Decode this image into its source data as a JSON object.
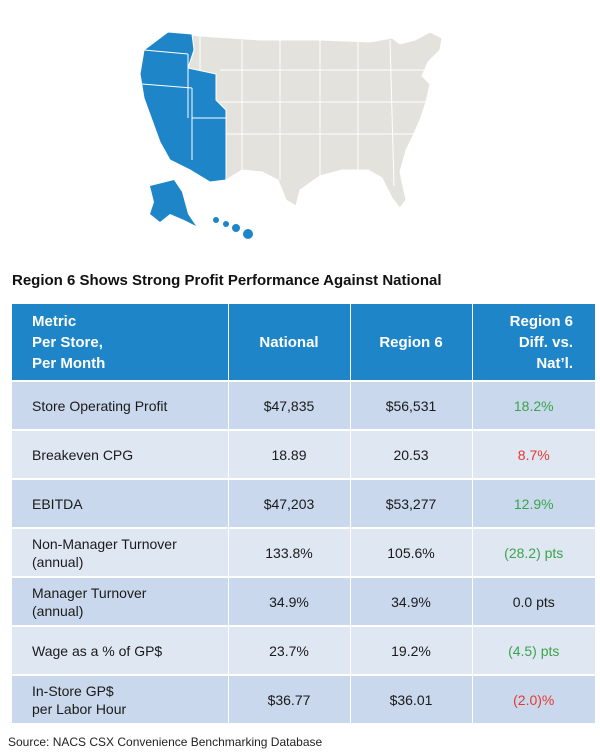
{
  "title": "Region 6 Shows Strong Profit Performance Against National",
  "table": {
    "headers": {
      "metric": [
        "Metric",
        "Per Store,",
        "Per Month"
      ],
      "national": "National",
      "region": "Region 6",
      "diff": [
        "Region 6",
        "Diff. vs.",
        "Nat’l."
      ]
    },
    "rows": [
      {
        "label": [
          "Store Operating Profit"
        ],
        "national": "$47,835",
        "region": "$56,531",
        "diff": "18.2%",
        "tone": "pos"
      },
      {
        "label": [
          "Breakeven CPG"
        ],
        "national": "18.89",
        "region": "20.53",
        "diff": "8.7%",
        "tone": "neg"
      },
      {
        "label": [
          "EBITDA"
        ],
        "national": "$47,203",
        "region": "$53,277",
        "diff": "12.9%",
        "tone": "pos"
      },
      {
        "label": [
          "Non-Manager Turnover",
          "(annual)"
        ],
        "national": "133.8%",
        "region": "105.6%",
        "diff": "(28.2) pts",
        "tone": "pos"
      },
      {
        "label": [
          "Manager Turnover",
          "(annual)"
        ],
        "national": "34.9%",
        "region": "34.9%",
        "diff": "0.0 pts",
        "tone": "neu"
      },
      {
        "label": [
          "Wage as a % of GP$"
        ],
        "national": "23.7%",
        "region": "19.2%",
        "diff": "(4.5) pts",
        "tone": "pos"
      },
      {
        "label": [
          "In-Store GP$",
          "per Labor Hour"
        ],
        "national": "$36.77",
        "region": "$36.01",
        "diff": "(2.0)%",
        "tone": "neg"
      }
    ]
  },
  "source": "Source: NACS CSX Convenience Benchmarking Database",
  "colors": {
    "highlight": "#1e86c8",
    "land": "#e4e2dc",
    "positive": "#3aa54a",
    "negative": "#e23a30"
  }
}
